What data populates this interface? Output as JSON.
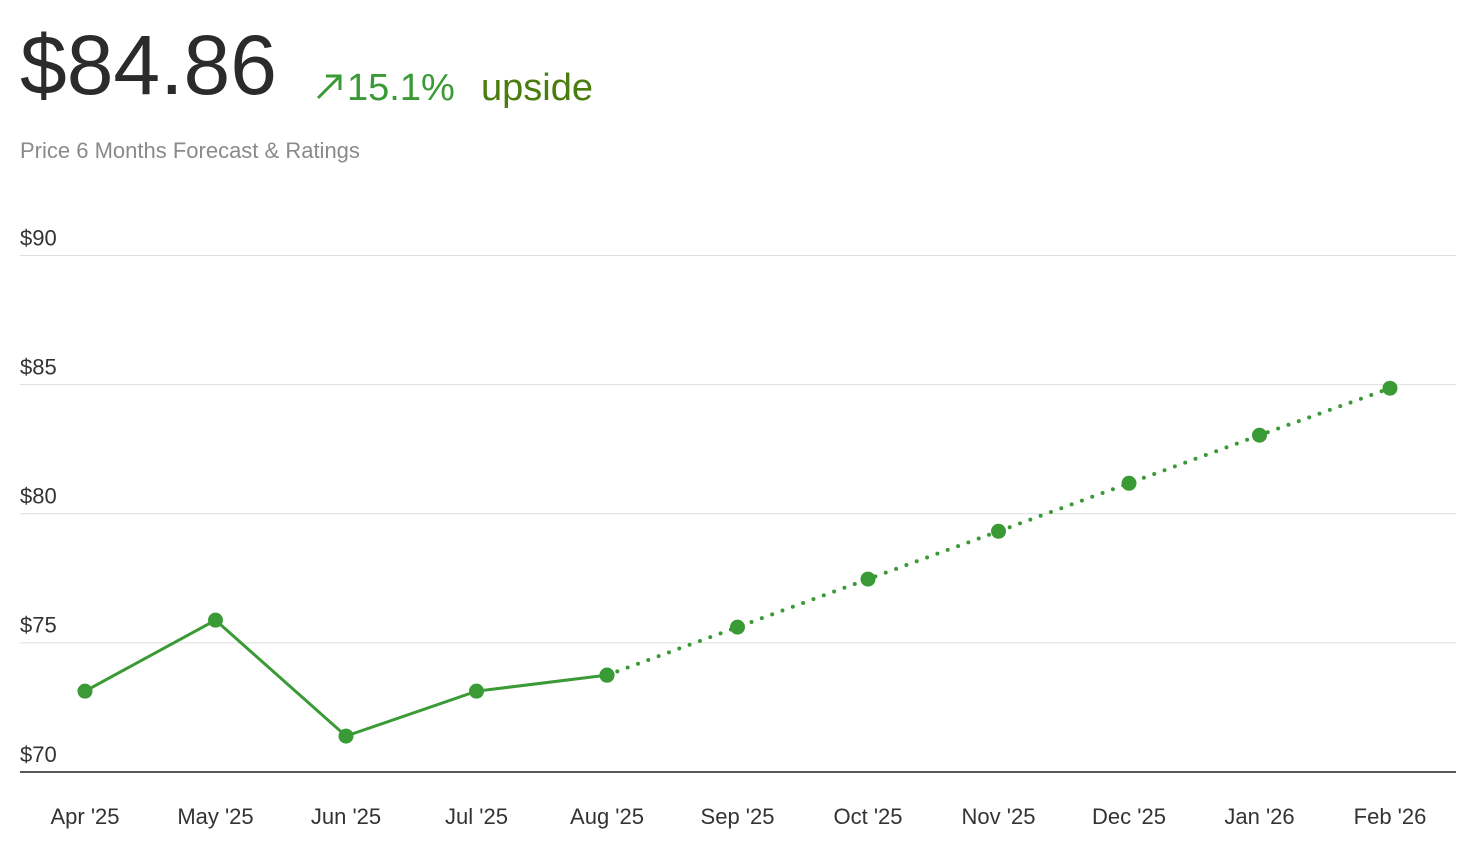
{
  "header": {
    "price": "$84.86",
    "change": "15.1%",
    "change_label": "upside",
    "subtitle": "Price 6 Months Forecast & Ratings"
  },
  "chart_data": {
    "type": "line",
    "categories": [
      "Apr '25",
      "May '25",
      "Jun '25",
      "Jul '25",
      "Aug '25",
      "Sep '25",
      "Oct '25",
      "Nov '25",
      "Dec '25",
      "Jan '26",
      "Feb '26"
    ],
    "series": [
      {
        "color": "#3a9a35",
        "style": "solid",
        "values": [
          73.13,
          75.88,
          71.39,
          73.13,
          73.75,
          null,
          null,
          null,
          null,
          null,
          null
        ]
      },
      {
        "color": "#3a9a35",
        "style": "dotted",
        "values": [
          null,
          null,
          null,
          null,
          73.75,
          75.61,
          77.47,
          79.32,
          81.18,
          83.04,
          84.86
        ]
      }
    ],
    "ylim": [
      70,
      90.6
    ],
    "yticks": [
      {
        "value": 70,
        "label": "$70"
      },
      {
        "value": 75,
        "label": "$75"
      },
      {
        "value": 80,
        "label": "$80"
      },
      {
        "value": 85,
        "label": "$85"
      },
      {
        "value": 90,
        "label": "$90"
      }
    ],
    "grid": true
  }
}
